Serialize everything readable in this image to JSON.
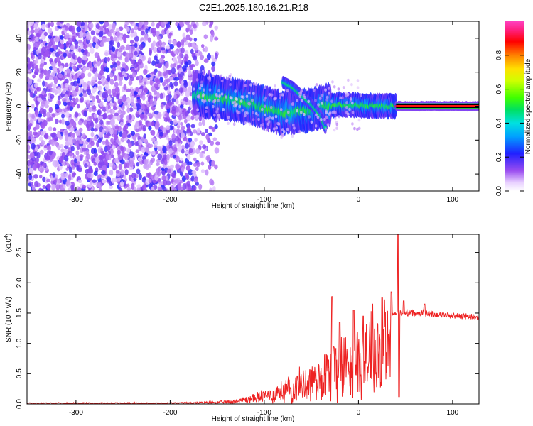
{
  "title": "C2E1.2025.180.16.21.R18",
  "colors": {
    "snr_line": "#ee2222",
    "scatter_purple": "#7a2bd8",
    "plot_bg": "#ffffff"
  },
  "chart_data": [
    {
      "type": "heatmap",
      "xlabel": "Height of straight line (km)",
      "ylabel": "Frequency (Hz)",
      "xlim": [
        -352,
        128
      ],
      "ylim": [
        -50,
        50
      ],
      "xticks": [
        -300,
        -200,
        -100,
        0,
        100
      ],
      "yticks": [
        -40,
        -20,
        0,
        20,
        40
      ],
      "colorbar": {
        "label": "Normalized spectral amplitude",
        "range": [
          0,
          1
        ],
        "ticks": [
          0.0,
          0.2,
          0.4,
          0.6,
          0.8
        ],
        "tick_labels": [
          "0.0",
          "0.2",
          "0.4",
          "0.6",
          "0.8"
        ]
      },
      "features": {
        "noise_region_x": [
          -352,
          -145
        ],
        "main_track": [
          [
            -175,
            7
          ],
          [
            -150,
            5
          ],
          [
            -125,
            3
          ],
          [
            -110,
            1
          ],
          [
            -95,
            -2
          ],
          [
            -80,
            -4
          ],
          [
            -65,
            -3
          ],
          [
            -50,
            -2
          ],
          [
            -35,
            0
          ],
          [
            -20,
            1
          ],
          [
            0,
            0.5
          ],
          [
            30,
            0
          ],
          [
            128,
            0
          ]
        ],
        "branch_track": [
          [
            -80,
            14
          ],
          [
            -70,
            11
          ],
          [
            -60,
            6
          ],
          [
            -50,
            1
          ],
          [
            -40,
            -6
          ],
          [
            -35,
            -13
          ]
        ],
        "carrier_start_x": 40
      }
    },
    {
      "type": "line",
      "xlabel": "Height of straight line (km)",
      "ylabel": "SNR (10 * v/v)",
      "y_multiplier_label": "(x10",
      "y_multiplier_exp": "4",
      "y_multiplier_close": ")",
      "xlim": [
        -352,
        128
      ],
      "ylim": [
        0,
        2.8
      ],
      "xticks": [
        -300,
        -200,
        -100,
        0,
        100
      ],
      "yticks": [
        0.0,
        0.5,
        1.0,
        1.5,
        2.0,
        2.5
      ],
      "ytick_labels": [
        "0.0",
        "0.5",
        "1.0",
        "1.5",
        "2.0",
        "2.5"
      ],
      "series": [
        {
          "envelope": {
            "x": [
              -352,
              -300,
              -250,
              -200,
              -170,
              -150,
              -130,
              -110,
              -100,
              -90,
              -80,
              -70,
              -60,
              -50,
              -40,
              -30,
              -20,
              -10,
              0,
              10,
              20,
              30,
              40,
              50,
              60,
              70,
              80,
              90,
              100,
              110,
              128
            ],
            "y": [
              0.02,
              0.02,
              0.02,
              0.02,
              0.03,
              0.04,
              0.07,
              0.15,
              0.2,
              0.25,
              0.32,
              0.4,
              0.5,
              0.6,
              0.7,
              0.85,
              1.0,
              1.1,
              1.2,
              1.3,
              1.4,
              1.45,
              1.5,
              1.5,
              1.5,
              1.5,
              1.48,
              1.47,
              1.46,
              1.45,
              1.43
            ]
          },
          "peaks": [
            [
              -28,
              1.77
            ],
            [
              -20,
              1.35
            ],
            [
              -5,
              1.55
            ],
            [
              5,
              1.45
            ],
            [
              15,
              1.65
            ],
            [
              25,
              1.75
            ],
            [
              35,
              1.85
            ],
            [
              42,
              2.8
            ],
            [
              43,
              0.12
            ],
            [
              48,
              1.7
            ],
            [
              70,
              1.65
            ]
          ]
        }
      ]
    }
  ]
}
